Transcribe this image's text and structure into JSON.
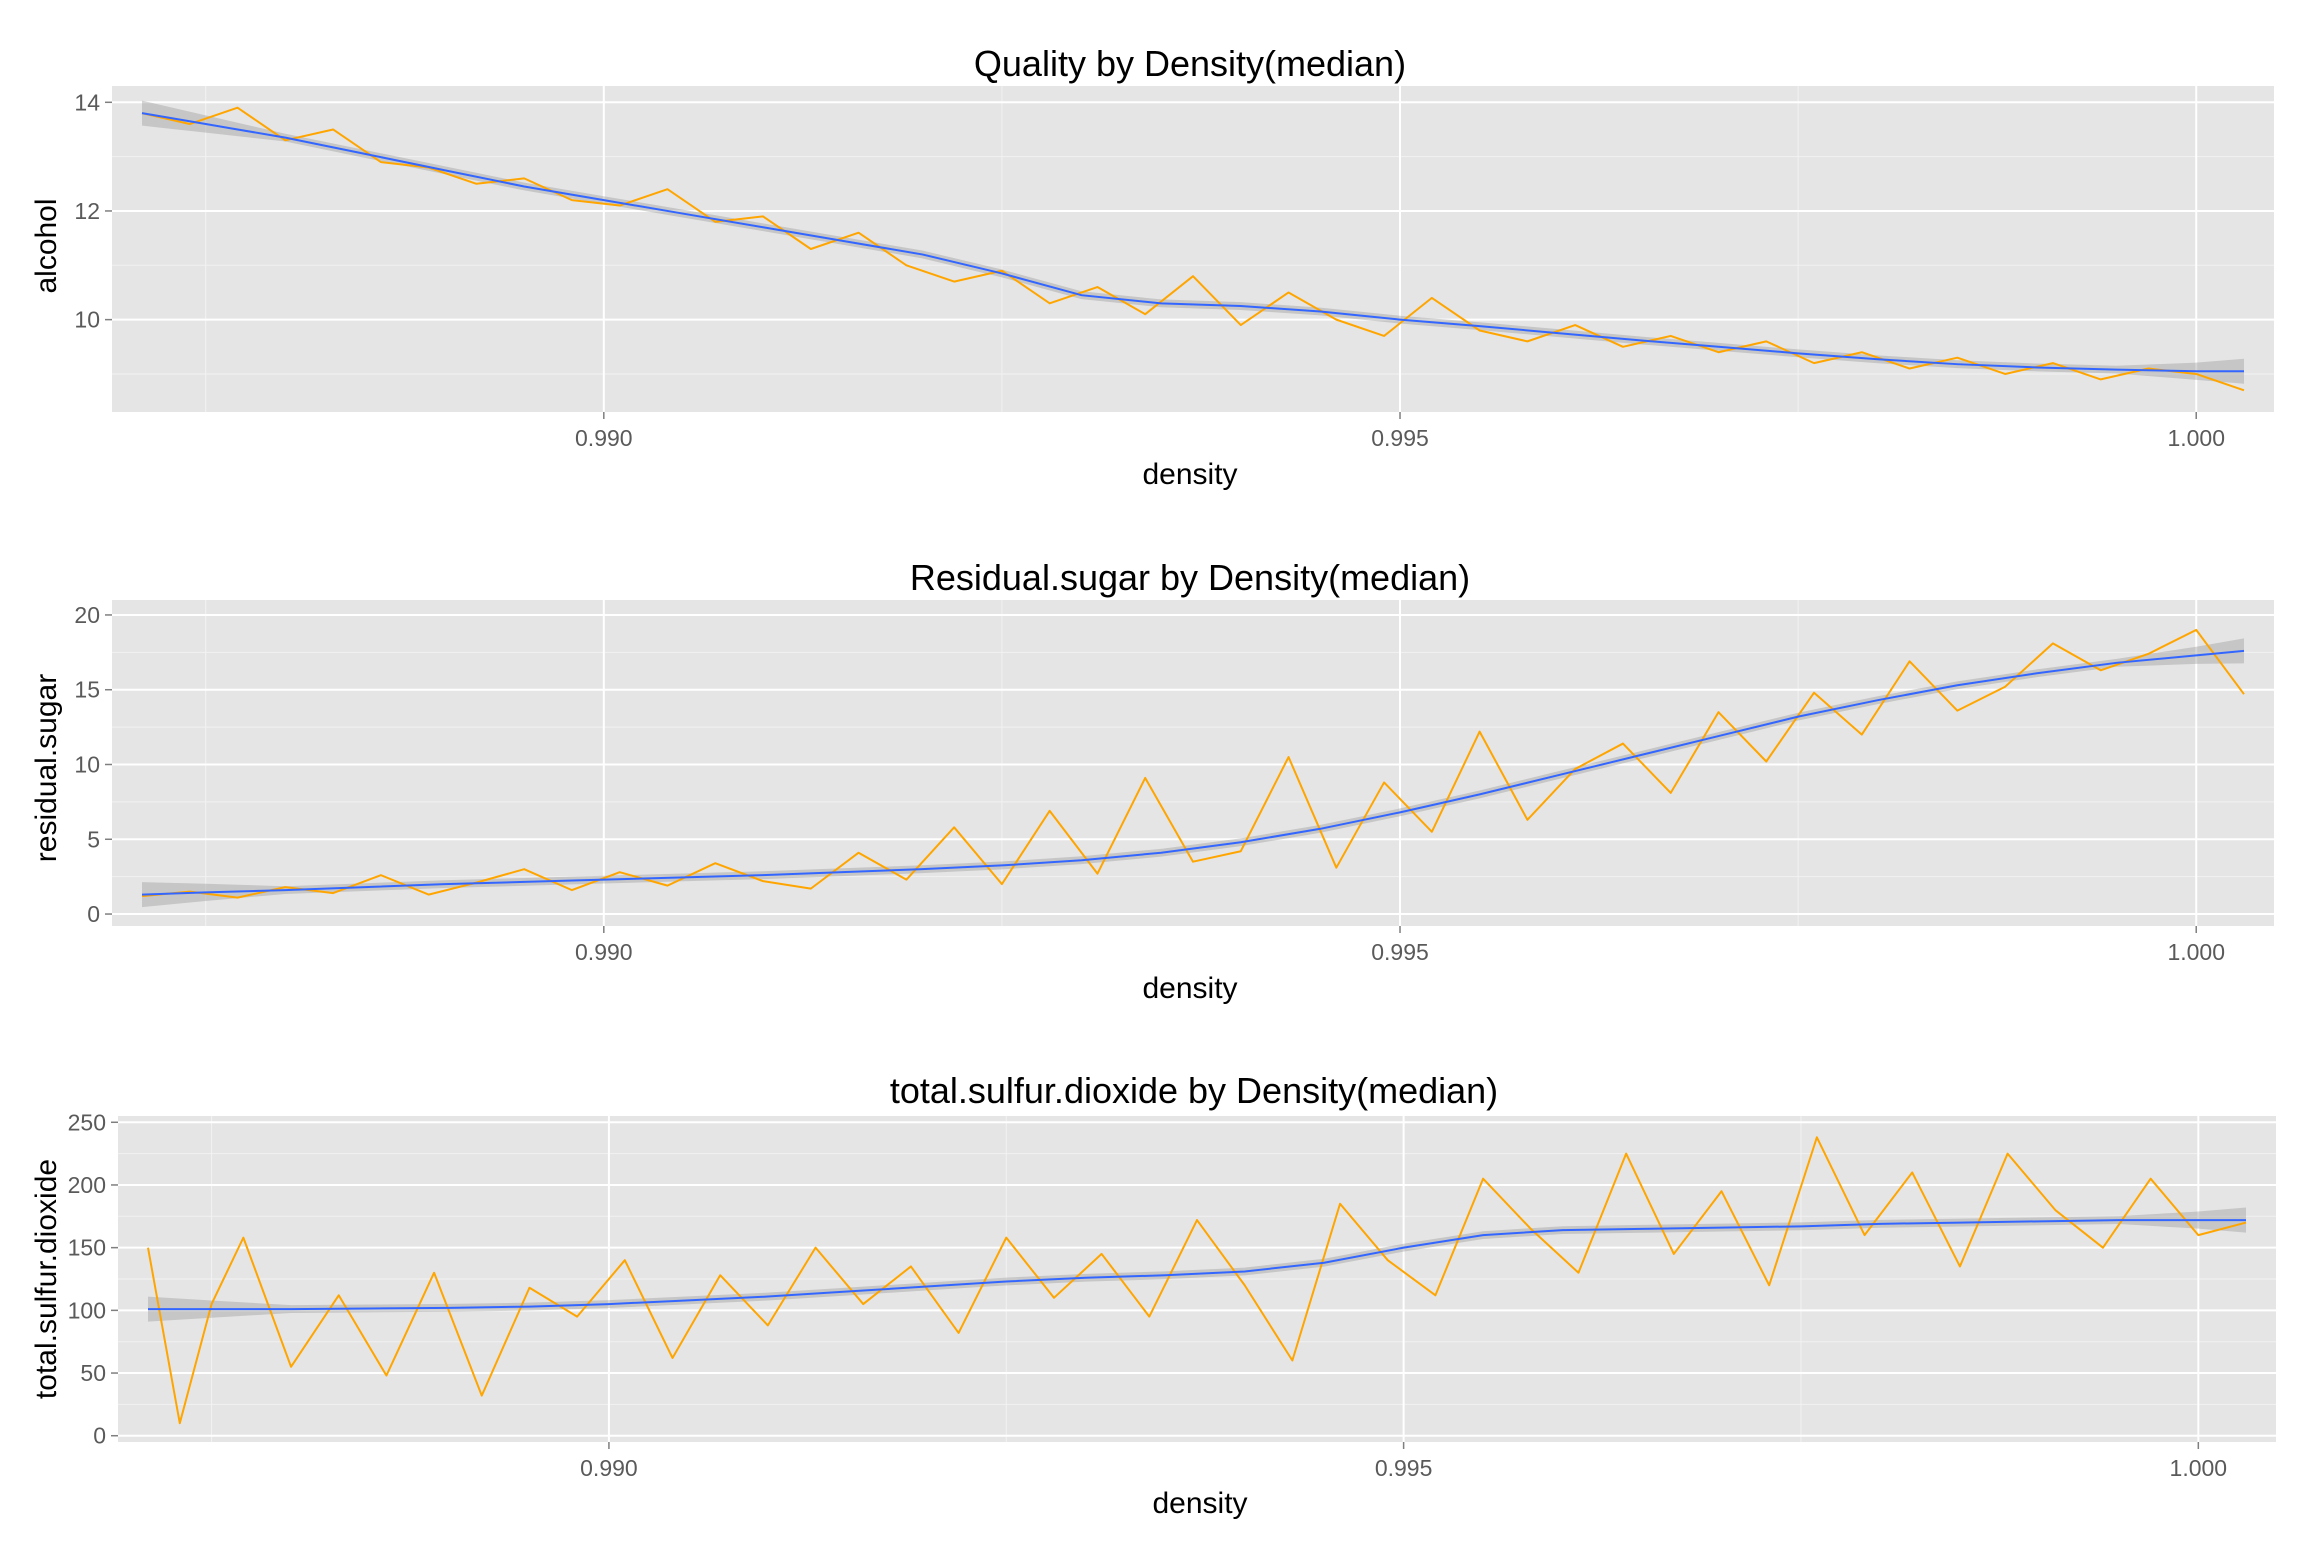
{
  "colors": {
    "series": "#FFA500",
    "smooth": "#3366FF",
    "band": "#999999",
    "panel": "#e5e5e5",
    "grid": "#ffffff"
  },
  "chart_data": [
    {
      "type": "line",
      "title": "Quality by Density(median)",
      "xlabel": "density",
      "ylabel": "alcohol",
      "xlim": [
        0.9871,
        1.0003
      ],
      "ylim": [
        8.3,
        14.3
      ],
      "x_ticks": [
        0.99,
        0.995,
        1.0
      ],
      "x_tick_labels": [
        "0.990",
        "0.995",
        "1.000"
      ],
      "y_ticks": [
        10,
        12,
        14
      ],
      "y_tick_labels": [
        "10",
        "12",
        "14"
      ],
      "grid": true,
      "series": [
        {
          "style": "median line",
          "color": "#FFA500",
          "x": [
            0.9871,
            0.9874,
            0.9877,
            0.988,
            0.9883,
            0.9886,
            0.9889,
            0.9892,
            0.9895,
            0.9898,
            0.9901,
            0.9904,
            0.9907,
            0.991,
            0.9913,
            0.9916,
            0.9919,
            0.9922,
            0.9925,
            0.9928,
            0.9931,
            0.9934,
            0.9937,
            0.994,
            0.9943,
            0.9946,
            0.9949,
            0.9952,
            0.9955,
            0.9958,
            0.9961,
            0.9964,
            0.9967,
            0.997,
            0.9973,
            0.9976,
            0.9979,
            0.9982,
            0.9985,
            0.9988,
            0.9991,
            0.9994,
            0.9997,
            1.0,
            1.0003
          ],
          "y": [
            13.8,
            13.6,
            13.9,
            13.3,
            13.5,
            12.9,
            12.8,
            12.5,
            12.6,
            12.2,
            12.1,
            12.4,
            11.8,
            11.9,
            11.3,
            11.6,
            11.0,
            10.7,
            10.9,
            10.3,
            10.6,
            10.1,
            10.8,
            9.9,
            10.5,
            10.0,
            9.7,
            10.4,
            9.8,
            9.6,
            9.9,
            9.5,
            9.7,
            9.4,
            9.6,
            9.2,
            9.4,
            9.1,
            9.3,
            9.0,
            9.2,
            8.9,
            9.1,
            9.0,
            8.7
          ]
        },
        {
          "style": "smooth",
          "color": "#3366FF",
          "x": [
            0.9871,
            0.9875,
            0.988,
            0.9885,
            0.989,
            0.9895,
            0.99,
            0.9905,
            0.991,
            0.9915,
            0.992,
            0.9925,
            0.993,
            0.9935,
            0.994,
            0.9945,
            0.995,
            0.9955,
            0.996,
            0.9965,
            0.997,
            0.9975,
            0.998,
            0.9985,
            0.999,
            0.9995,
            1.0,
            1.0003
          ],
          "y": [
            13.8,
            13.6,
            13.35,
            13.05,
            12.75,
            12.45,
            12.2,
            11.95,
            11.7,
            11.45,
            11.2,
            10.85,
            10.45,
            10.3,
            10.25,
            10.15,
            10.0,
            9.88,
            9.75,
            9.62,
            9.5,
            9.38,
            9.27,
            9.18,
            9.12,
            9.08,
            9.05,
            9.05
          ]
        }
      ]
    },
    {
      "type": "line",
      "title": "Residual.sugar by Density(median)",
      "xlabel": "density",
      "ylabel": "residual.sugar",
      "xlim": [
        0.9871,
        1.0003
      ],
      "ylim": [
        -0.8,
        21.0
      ],
      "x_ticks": [
        0.99,
        0.995,
        1.0
      ],
      "x_tick_labels": [
        "0.990",
        "0.995",
        "1.000"
      ],
      "y_ticks": [
        0,
        5,
        10,
        15,
        20
      ],
      "y_tick_labels": [
        "0",
        "5",
        "10",
        "15",
        "20"
      ],
      "grid": true,
      "series": [
        {
          "style": "median line",
          "color": "#FFA500",
          "x": [
            0.9871,
            0.9874,
            0.9877,
            0.988,
            0.9883,
            0.9886,
            0.9889,
            0.9892,
            0.9895,
            0.9898,
            0.9901,
            0.9904,
            0.9907,
            0.991,
            0.9913,
            0.9916,
            0.9919,
            0.9922,
            0.9925,
            0.9928,
            0.9931,
            0.9934,
            0.9937,
            0.994,
            0.9943,
            0.9946,
            0.9949,
            0.9952,
            0.9955,
            0.9958,
            0.9961,
            0.9964,
            0.9967,
            0.997,
            0.9973,
            0.9976,
            0.9979,
            0.9982,
            0.9985,
            0.9988,
            0.9991,
            0.9994,
            0.9997,
            1.0,
            1.0003
          ],
          "y": [
            1.2,
            1.5,
            1.1,
            1.8,
            1.4,
            2.6,
            1.3,
            2.1,
            3.0,
            1.6,
            2.8,
            1.9,
            3.4,
            2.2,
            1.7,
            4.1,
            2.3,
            5.8,
            2.0,
            6.9,
            2.7,
            9.1,
            3.5,
            4.2,
            10.5,
            3.1,
            8.8,
            5.5,
            12.2,
            6.3,
            9.7,
            11.4,
            8.1,
            13.5,
            10.2,
            14.8,
            12.0,
            16.9,
            13.6,
            15.2,
            18.1,
            16.3,
            17.4,
            19.0,
            14.7
          ]
        },
        {
          "style": "smooth",
          "color": "#3366FF",
          "x": [
            0.9871,
            0.9875,
            0.988,
            0.9885,
            0.989,
            0.9895,
            0.99,
            0.9905,
            0.991,
            0.9915,
            0.992,
            0.9925,
            0.993,
            0.9935,
            0.994,
            0.9945,
            0.995,
            0.9955,
            0.996,
            0.9965,
            0.997,
            0.9975,
            0.998,
            0.9985,
            0.999,
            0.9995,
            1.0,
            1.0003
          ],
          "y": [
            1.3,
            1.45,
            1.6,
            1.8,
            2.0,
            2.15,
            2.3,
            2.45,
            2.6,
            2.8,
            3.0,
            3.25,
            3.6,
            4.1,
            4.8,
            5.7,
            6.8,
            8.0,
            9.3,
            10.6,
            11.9,
            13.2,
            14.3,
            15.3,
            16.1,
            16.8,
            17.3,
            17.6
          ]
        }
      ]
    },
    {
      "type": "line",
      "title": "total.sulfur.dioxide by Density(median)",
      "xlabel": "density",
      "ylabel": "total.sulfur.dioxide",
      "xlim": [
        0.9871,
        1.0003
      ],
      "ylim": [
        -5,
        255
      ],
      "x_ticks": [
        0.99,
        0.995,
        1.0
      ],
      "x_tick_labels": [
        "0.990",
        "0.995",
        "1.000"
      ],
      "y_ticks": [
        0,
        50,
        100,
        150,
        200,
        250
      ],
      "y_tick_labels": [
        "0",
        "50",
        "100",
        "150",
        "200",
        "250"
      ],
      "grid": true,
      "series": [
        {
          "style": "median line",
          "color": "#FFA500",
          "x": [
            0.9871,
            0.9873,
            0.9875,
            0.9877,
            0.988,
            0.9883,
            0.9886,
            0.9889,
            0.9892,
            0.9895,
            0.9898,
            0.9901,
            0.9904,
            0.9907,
            0.991,
            0.9913,
            0.9916,
            0.9919,
            0.9922,
            0.9925,
            0.9928,
            0.9931,
            0.9934,
            0.9937,
            0.994,
            0.9943,
            0.9946,
            0.9949,
            0.9952,
            0.9955,
            0.9958,
            0.9961,
            0.9964,
            0.9967,
            0.997,
            0.9973,
            0.9976,
            0.9979,
            0.9982,
            0.9985,
            0.9988,
            0.9991,
            0.9994,
            0.9997,
            1.0,
            1.0003
          ],
          "y": [
            150,
            10,
            105,
            158,
            55,
            112,
            48,
            130,
            32,
            118,
            95,
            140,
            62,
            128,
            88,
            150,
            105,
            135,
            82,
            158,
            110,
            145,
            95,
            172,
            120,
            60,
            185,
            140,
            112,
            205,
            165,
            130,
            225,
            145,
            195,
            120,
            238,
            160,
            210,
            135,
            225,
            180,
            150,
            205,
            160,
            170
          ]
        },
        {
          "style": "smooth",
          "color": "#3366FF",
          "x": [
            0.9871,
            0.9875,
            0.988,
            0.9885,
            0.989,
            0.9895,
            0.99,
            0.9905,
            0.991,
            0.9915,
            0.992,
            0.9925,
            0.993,
            0.9935,
            0.994,
            0.9945,
            0.995,
            0.9955,
            0.996,
            0.9965,
            0.997,
            0.9975,
            0.998,
            0.9985,
            0.999,
            0.9995,
            1.0,
            1.0003
          ],
          "y": [
            101,
            101,
            101,
            101.5,
            102,
            103,
            105,
            108,
            111,
            115,
            119,
            123,
            126,
            128,
            131,
            138,
            150,
            160,
            164,
            165,
            166,
            167,
            169,
            170,
            171,
            172,
            172,
            172
          ]
        }
      ]
    }
  ]
}
